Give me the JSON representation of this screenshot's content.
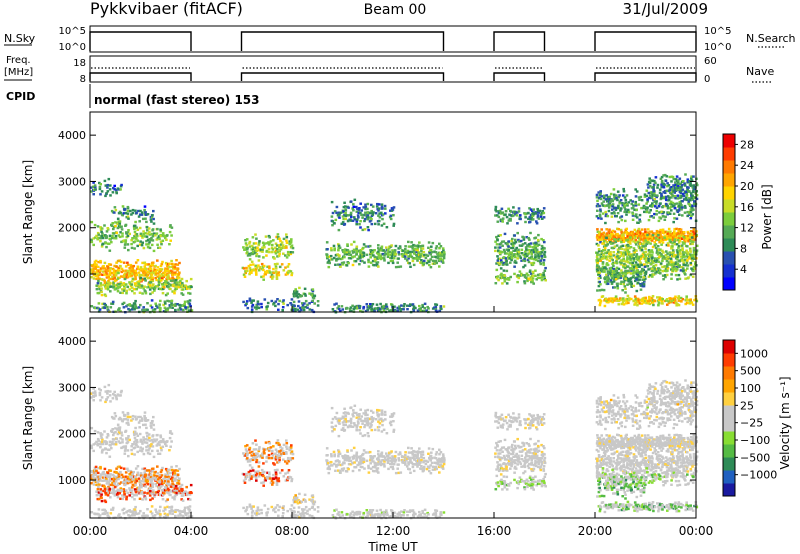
{
  "header": {
    "title": "Pykkvibaer (fitACF)",
    "beam": "Beam 00",
    "date": "31/Jul/2009"
  },
  "top_panels": {
    "nsky_label": "N.Sky",
    "nsearch_label": "N.Search",
    "log_ticks": [
      "10^5",
      "10^0"
    ],
    "freq_label": "Freq.",
    "freq_unit": "[MHz]",
    "freq_ticks": [
      "18",
      "8"
    ],
    "nave_label": "Nave",
    "nave_ticks": [
      "60",
      "0"
    ],
    "cpid_label": "CPID",
    "cpid_text": "normal (fast stereo) 153"
  },
  "chart_data": [
    {
      "type": "heatmap",
      "name": "power-panel",
      "ylabel": "Slant Range [km]",
      "y_ticks": [
        "4000",
        "3000",
        "2000",
        "1000"
      ],
      "y_tick_values": [
        4000,
        3000,
        2000,
        1000
      ],
      "ylim": [
        180,
        4500
      ],
      "xlim_hours": [
        0,
        24
      ],
      "colorbar": {
        "label": "Power [dB]",
        "ticks": [
          "28",
          "24",
          "20",
          "16",
          "12",
          "8",
          "4"
        ],
        "tick_values": [
          28,
          24,
          20,
          16,
          12,
          8,
          4
        ],
        "range": [
          0,
          30
        ],
        "colors": [
          "#0000ff",
          "#1530d0",
          "#2850b0",
          "#2e8b57",
          "#55aa55",
          "#7ccd3c",
          "#c8dc28",
          "#ffd400",
          "#ffa500",
          "#ff7a00",
          "#ff3c00",
          "#ee0000"
        ]
      }
    },
    {
      "type": "heatmap",
      "name": "velocity-panel",
      "ylabel": "Slant Range [km]",
      "y_ticks": [
        "4000",
        "3000",
        "2000",
        "1000"
      ],
      "y_tick_values": [
        4000,
        3000,
        2000,
        1000
      ],
      "ylim": [
        180,
        4500
      ],
      "xlim_hours": [
        0,
        24
      ],
      "xlabel": "Time UT",
      "x_ticks": [
        "00:00",
        "04:00",
        "08:00",
        "12:00",
        "16:00",
        "20:00",
        "00:00"
      ],
      "colorbar": {
        "label": "Velocity [m s⁻¹]",
        "ticks": [
          "1000",
          "500",
          "100",
          "25",
          "−25",
          "−100",
          "−500",
          "−1000"
        ],
        "colors": [
          "#1a1aa0",
          "#2060c0",
          "#2e8b57",
          "#55bb44",
          "#88dd33",
          "#c8c8c8",
          "#c8c8c8",
          "#ffd040",
          "#ffa500",
          "#ff7a00",
          "#ff3c00",
          "#dd0000"
        ]
      }
    }
  ],
  "operation_windows_hours": [
    [
      0,
      4
    ],
    [
      6,
      14
    ],
    [
      16,
      18
    ],
    [
      20,
      24
    ]
  ]
}
